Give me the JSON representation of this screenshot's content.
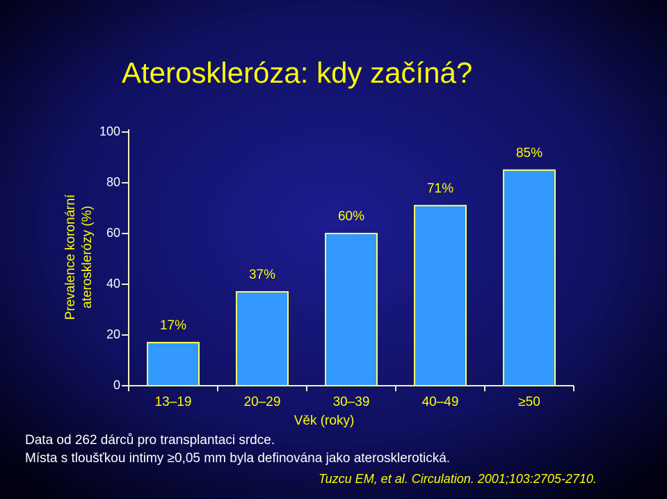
{
  "chart_data": {
    "type": "bar",
    "title": "Ateroskleróza: kdy začíná?",
    "ylabel": [
      "Prevalence koronární",
      "aterosklerózy (%)"
    ],
    "xlabel": "Věk (roky)",
    "categories": [
      "13–19",
      "20–29",
      "30–39",
      "40–49",
      "≥50"
    ],
    "values": [
      17,
      37,
      60,
      71,
      85
    ],
    "value_labels": [
      "17%",
      "37%",
      "60%",
      "71%",
      "85%"
    ],
    "color": "#3399ff",
    "ylim": [
      0,
      100
    ],
    "yticks": [
      0,
      20,
      40,
      60,
      80,
      100
    ],
    "notes": [
      "Data od 262 dárců pro transplantaci srdce.",
      "Místa s tloušťkou intimy ≥0,05 mm byla definována jako aterosklerotická."
    ],
    "citation": "Tuzcu EM, et al. Circulation. 2001;103:2705-2710."
  }
}
